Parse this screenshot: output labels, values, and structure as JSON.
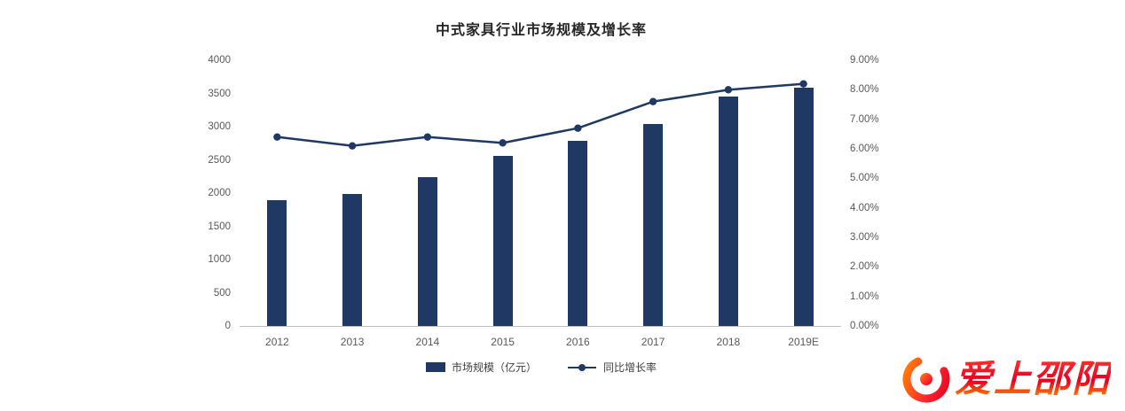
{
  "chart_data": {
    "type": "bar+line",
    "title": "中式家具行业市场规模及增长率",
    "categories": [
      "2012",
      "2013",
      "2014",
      "2015",
      "2016",
      "2017",
      "2018",
      "2019E"
    ],
    "series": [
      {
        "name": "市场规模（亿元）",
        "type": "bar",
        "axis": "left",
        "color": "#1f3864",
        "values": [
          1890,
          1990,
          2240,
          2560,
          2790,
          3040,
          3450,
          3590
        ]
      },
      {
        "name": "同比增长率",
        "type": "line",
        "axis": "right",
        "color": "#1f3864",
        "values": [
          6.4,
          6.1,
          6.4,
          6.2,
          6.7,
          7.6,
          8.0,
          8.2
        ]
      }
    ],
    "left_axis": {
      "min": 0,
      "max": 4000,
      "step": 500,
      "tick_labels": [
        "0",
        "500",
        "1000",
        "1500",
        "2000",
        "2500",
        "3000",
        "3500",
        "4000"
      ]
    },
    "right_axis": {
      "min": 0,
      "max": 9,
      "step": 1,
      "tick_labels": [
        "0.00%",
        "1.00%",
        "2.00%",
        "3.00%",
        "4.00%",
        "5.00%",
        "6.00%",
        "7.00%",
        "8.00%",
        "9.00%"
      ]
    },
    "grid": "off",
    "legend_position": "bottom"
  },
  "logo": {
    "text": "爱上邵阳"
  }
}
